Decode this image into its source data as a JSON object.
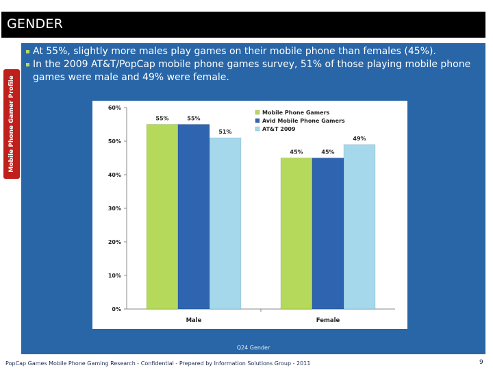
{
  "slide": {
    "title": "GENDER",
    "side_tab": "Mobile Phone Gamer Profile",
    "bullets": [
      "At 55%, slightly more males play games on their mobile phone than females (45%).",
      "In the 2009 AT&T/PopCap mobile phone games survey, 51% of those playing mobile phone games were male and 49% were female."
    ],
    "source_note": "Q24  Gender",
    "footer": "PopCap Games Mobile Phone Gaming Research - Confidential - Prepared by Information Solutions Group - 2011",
    "page_number": "9"
  },
  "colors": {
    "title_bar": "#000000",
    "panel": "#2866a8",
    "side_tab": "#c0201c",
    "bullet_mark": "#b7d96a"
  },
  "chart_data": {
    "type": "bar",
    "categories": [
      "Male",
      "Female"
    ],
    "series": [
      {
        "name": "Mobile Phone Gamers",
        "values": [
          55,
          45
        ],
        "labels": [
          "55%",
          "45%"
        ],
        "color": "#b5d95b"
      },
      {
        "name": "Avid Mobile Phone Gamers",
        "values": [
          55,
          45
        ],
        "labels": [
          "55%",
          "45%"
        ],
        "color": "#2f64b0"
      },
      {
        "name": "AT&T 2009",
        "values": [
          51,
          49
        ],
        "labels": [
          "51%",
          "49%"
        ],
        "color": "#a6d8ec"
      }
    ],
    "y_ticks": [
      "0%",
      "10%",
      "20%",
      "30%",
      "40%",
      "50%",
      "60%"
    ],
    "ylim": [
      0,
      60
    ],
    "grid": false,
    "legend_position": "top-right"
  }
}
